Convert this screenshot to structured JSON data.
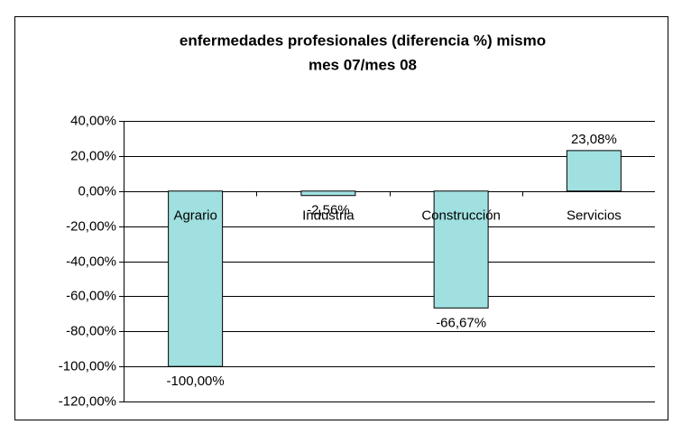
{
  "chart_data": {
    "type": "bar",
    "title": [
      "enfermedades profesionales (diferencia %) mismo",
      "mes 07/mes 08"
    ],
    "categories": [
      "Agrario",
      "Industria",
      "Construcción",
      "Servicios"
    ],
    "values": [
      -100,
      -2.56,
      -66.67,
      23.08
    ],
    "value_labels": [
      "-100,00%",
      "-2,56%",
      "-66,67%",
      "23,08%"
    ],
    "color": "#a0e0e0",
    "ylim": [
      -120,
      40
    ],
    "yticks": [
      {
        "value": -120,
        "label": "-120,00%"
      },
      {
        "value": -100,
        "label": "-100,00%"
      },
      {
        "value": -80,
        "label": "-80,00%"
      },
      {
        "value": -60,
        "label": "-60,00%"
      },
      {
        "value": -40,
        "label": "-40,00%"
      },
      {
        "value": -20,
        "label": "-20,00%"
      },
      {
        "value": 0,
        "label": "0,00%"
      },
      {
        "value": 20,
        "label": "20,00%"
      },
      {
        "value": 40,
        "label": "40,00%"
      }
    ],
    "grid": true
  }
}
